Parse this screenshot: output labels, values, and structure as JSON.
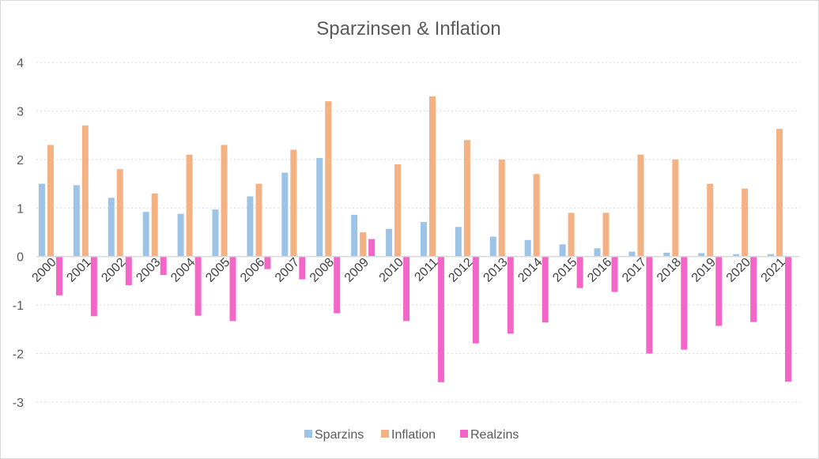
{
  "chart_data": {
    "type": "bar",
    "title": "Sparzinsen & Inflation",
    "categories": [
      "2000",
      "2001",
      "2002",
      "2003",
      "2004",
      "2005",
      "2006",
      "2007",
      "2008",
      "2009",
      "2010",
      "2011",
      "2012",
      "2013",
      "2014",
      "2015",
      "2016",
      "2017",
      "2018",
      "2019",
      "2020",
      "2021"
    ],
    "series": [
      {
        "name": "Sparzins",
        "color": "#9dc3e6",
        "values": [
          1.5,
          1.47,
          1.21,
          0.92,
          0.88,
          0.97,
          1.24,
          1.73,
          2.03,
          0.86,
          0.57,
          0.71,
          0.61,
          0.41,
          0.34,
          0.25,
          0.17,
          0.1,
          0.08,
          0.07,
          0.05,
          0.05
        ]
      },
      {
        "name": "Inflation",
        "color": "#f4b183",
        "values": [
          2.3,
          2.7,
          1.8,
          1.3,
          2.1,
          2.3,
          1.5,
          2.2,
          3.2,
          0.5,
          1.9,
          3.3,
          2.4,
          2.0,
          1.7,
          0.9,
          0.9,
          2.1,
          2.0,
          1.5,
          1.4,
          2.63
        ]
      },
      {
        "name": "Realzins",
        "color": "#f366c8",
        "values": [
          -0.8,
          -1.23,
          -0.59,
          -0.38,
          -1.22,
          -1.33,
          -0.26,
          -0.47,
          -1.17,
          0.36,
          -1.33,
          -2.59,
          -1.79,
          -1.59,
          -1.36,
          -0.65,
          -0.73,
          -2.0,
          -1.92,
          -1.43,
          -1.35,
          -2.58
        ]
      }
    ],
    "ylim": [
      -3,
      4
    ],
    "yticks": [
      "-3",
      "-2",
      "-1",
      "0",
      "1",
      "2",
      "3",
      "4"
    ],
    "grid": true,
    "legend_position": "bottom"
  }
}
